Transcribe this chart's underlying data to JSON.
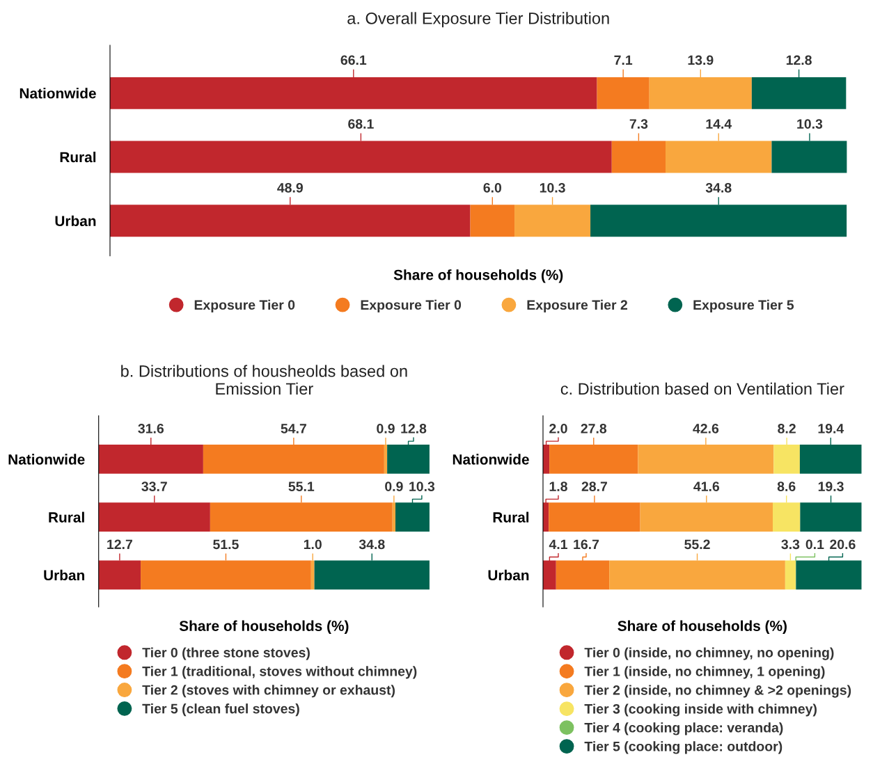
{
  "chart_data": [
    {
      "type": "bar",
      "orientation": "horizontal",
      "stacked": true,
      "title": "a. Overall Exposure Tier Distribution",
      "xlabel": "Share of households (%)",
      "categories": [
        "Nationwide",
        "Rural",
        "Urban"
      ],
      "xlim": [
        0,
        100
      ],
      "tick_labels": "y",
      "legend": "bottom",
      "marker": "circle",
      "series": [
        {
          "name": "Exposure Tier 0",
          "color": "#c1272d",
          "values": [
            66.1,
            68.1,
            48.9
          ],
          "value_labels": [
            "66.1",
            "68.1",
            "48.9"
          ]
        },
        {
          "name": "Exposure Tier 0",
          "color": "#f47b20",
          "values": [
            7.1,
            7.3,
            6.0
          ],
          "value_labels": [
            "7.1",
            "7.3",
            "6.0"
          ]
        },
        {
          "name": "Exposure Tier 2",
          "color": "#f9a73e",
          "values": [
            13.9,
            14.4,
            10.3
          ],
          "value_labels": [
            "13.9",
            "14.4",
            "10.3"
          ]
        },
        {
          "name": "Exposure Tier 5",
          "color": "#006450",
          "values": [
            12.8,
            10.3,
            34.8
          ],
          "value_labels": [
            "12.8",
            "10.3",
            "34.8"
          ]
        }
      ]
    },
    {
      "type": "bar",
      "orientation": "horizontal",
      "stacked": true,
      "title": "b. Distributions of housheolds based on\nEmission Tier",
      "xlabel": "Share of households (%)",
      "categories": [
        "Nationwide",
        "Rural",
        "Urban"
      ],
      "xlim": [
        0,
        100
      ],
      "tick_labels": "y",
      "legend": "bottom",
      "marker": "circle",
      "series": [
        {
          "name": "Tier 0 (three stone stoves)",
          "color": "#c1272d",
          "values": [
            31.6,
            33.7,
            12.7
          ],
          "value_labels": [
            "31.6",
            "33.7",
            "12.7"
          ]
        },
        {
          "name": "Tier 1 (traditional, stoves without chimney)",
          "color": "#f47b20",
          "values": [
            54.7,
            55.1,
            51.5
          ],
          "value_labels": [
            "54.7",
            "55.1",
            "51.5"
          ]
        },
        {
          "name": "Tier 2 (stoves with chimney or exhaust)",
          "color": "#f9a73e",
          "values": [
            0.9,
            0.9,
            1.0
          ],
          "value_labels": [
            "0.9",
            "0.9",
            "1.0"
          ]
        },
        {
          "name": "Tier 5 (clean fuel stoves)",
          "color": "#006450",
          "values": [
            12.8,
            10.3,
            34.8
          ],
          "value_labels": [
            "12.8",
            "10.3",
            "34.8"
          ]
        }
      ]
    },
    {
      "type": "bar",
      "orientation": "horizontal",
      "stacked": true,
      "title": "c. Distribution based on Ventilation Tier",
      "xlabel": "Share of households (%)",
      "categories": [
        "Nationwide",
        "Rural",
        "Urban"
      ],
      "xlim": [
        0,
        100
      ],
      "tick_labels": "y",
      "legend": "bottom",
      "marker": "circle",
      "series": [
        {
          "name": "Tier 0 (inside, no chimney, no opening)",
          "color": "#c1272d",
          "values": [
            2.0,
            1.8,
            4.1
          ],
          "value_labels": [
            "2.0",
            "1.8",
            "4.1"
          ]
        },
        {
          "name": "Tier 1 (inside, no chimney, 1 opening)",
          "color": "#f47b20",
          "values": [
            27.8,
            28.7,
            16.7
          ],
          "value_labels": [
            "27.8",
            "28.7",
            "16.7"
          ]
        },
        {
          "name": "Tier 2 (inside, no chimney & >2 openings)",
          "color": "#f9a73e",
          "values": [
            42.6,
            41.6,
            55.2
          ],
          "value_labels": [
            "42.6",
            "41.6",
            "55.2"
          ]
        },
        {
          "name": "Tier 3 (cooking inside with chimney)",
          "color": "#f7e463",
          "values": [
            8.2,
            8.6,
            3.3
          ],
          "value_labels": [
            "8.2",
            "8.6",
            "3.3"
          ]
        },
        {
          "name": "Tier 4 (cooking place: veranda)",
          "color": "#7dc160",
          "values": [
            null,
            null,
            0.1
          ],
          "value_labels": [
            null,
            null,
            "0.1"
          ]
        },
        {
          "name": "Tier 5 (cooking place: outdoor)",
          "color": "#006450",
          "values": [
            19.4,
            19.3,
            20.6
          ],
          "value_labels": [
            "19.4",
            "19.3",
            "20.6"
          ]
        }
      ]
    }
  ]
}
